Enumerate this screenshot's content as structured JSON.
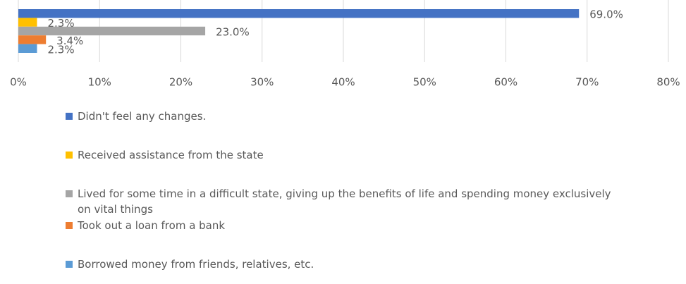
{
  "chart_data": {
    "type": "hbar",
    "series": [
      {
        "name": "Didn't feel any changes.",
        "color": "#4472c4",
        "values": [
          69.0
        ],
        "value_labels": [
          "69.0%"
        ]
      },
      {
        "name": "Received assistance from the state",
        "color": "#ffc000",
        "values": [
          2.3
        ],
        "value_labels": [
          "2.3%"
        ]
      },
      {
        "name": "Lived for some time in a difficult state, giving up the benefits of life and spending money exclusively on vital things",
        "color": "#a5a5a5",
        "values": [
          23.0
        ],
        "value_labels": [
          "23.0%"
        ]
      },
      {
        "name": "Took out a loan from a bank",
        "color": "#ed7d31",
        "values": [
          3.4
        ],
        "value_labels": [
          "3.4%"
        ]
      },
      {
        "name": "Borrowed money from friends, relatives, etc.",
        "color": "#5b9bd5",
        "values": [
          2.3
        ],
        "value_labels": [
          "2.3%"
        ]
      }
    ],
    "xlim": [
      0,
      80
    ],
    "xticks": [
      {
        "value": 0,
        "label": "0%"
      },
      {
        "value": 10,
        "label": "10%"
      },
      {
        "value": 20,
        "label": "20%"
      },
      {
        "value": 30,
        "label": "30%"
      },
      {
        "value": 40,
        "label": "40%"
      },
      {
        "value": 50,
        "label": "50%"
      },
      {
        "value": 60,
        "label": "60%"
      },
      {
        "value": 70,
        "label": "70%"
      },
      {
        "value": 80,
        "label": "80%"
      }
    ],
    "grid": true,
    "legend": "bottom"
  }
}
